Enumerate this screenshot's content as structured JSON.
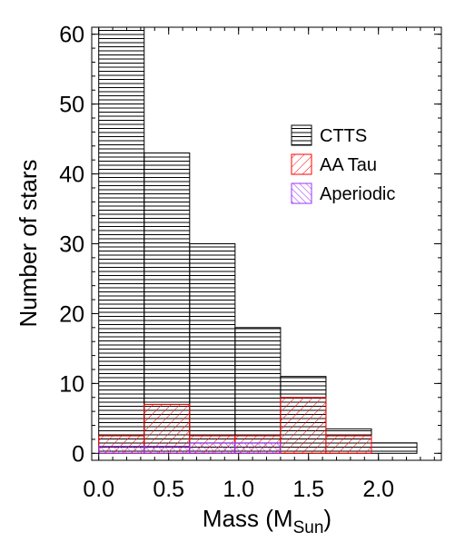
{
  "chart_data": {
    "type": "bar",
    "title": "",
    "xlabel_main": "Mass (M",
    "xlabel_sub": "Sun",
    "xlabel_close": ")",
    "ylabel": "Number of stars",
    "xlim": [
      -0.05,
      2.45
    ],
    "ylim": [
      -1,
      61
    ],
    "xticks": [
      0.0,
      0.5,
      1.0,
      1.5,
      2.0
    ],
    "xtick_labels": [
      "0.0",
      "0.5",
      "1.0",
      "1.5",
      "2.0"
    ],
    "yticks": [
      0,
      10,
      20,
      30,
      40,
      50,
      60
    ],
    "ytick_labels": [
      "0",
      "10",
      "20",
      "30",
      "40",
      "50",
      "60"
    ],
    "bin_edges": [
      0.0,
      0.325,
      0.65,
      0.975,
      1.3,
      1.625,
      1.95,
      2.275
    ],
    "series": [
      {
        "name": "CTTS",
        "values": [
          61,
          43,
          30,
          18,
          11,
          3.5,
          1.5
        ],
        "color": "#000000",
        "hatch": "horizontal"
      },
      {
        "name": "AA Tau",
        "values": [
          2.5,
          7,
          2.5,
          2.5,
          8,
          2.5,
          0
        ],
        "color": "#ff0000",
        "hatch": "diagonal-down"
      },
      {
        "name": "Aperiodic",
        "values": [
          1,
          1,
          1.5,
          1.5,
          0,
          0,
          0
        ],
        "color": "#9b30ff",
        "hatch": "diagonal-up"
      }
    ],
    "legend_position": "upper-right",
    "grid": false
  }
}
